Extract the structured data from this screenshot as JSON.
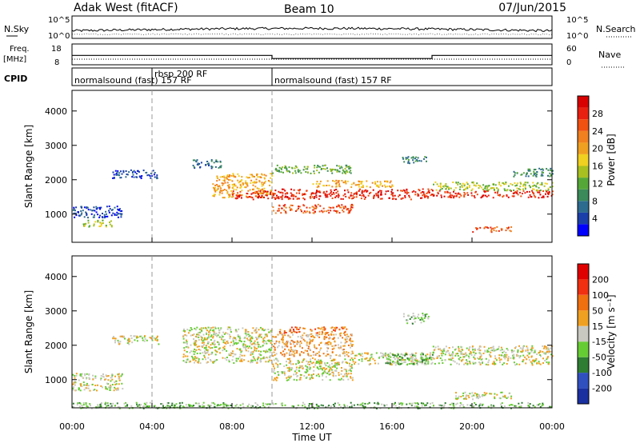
{
  "chart_data": {
    "type": "heatmap",
    "header": {
      "site": "Adak West (fitACF)",
      "beam": "Beam 10",
      "date": "07/Jun/2015"
    },
    "top_panels": {
      "nsky": {
        "label": "N.Sky",
        "ticks": [
          "10^5",
          "10^0"
        ],
        "right_label": "N.Search",
        "right_ticks": [
          "10^5",
          "10^0"
        ]
      },
      "freq": {
        "label_line1": "Freq.",
        "label_line2": "[MHz]",
        "ticks": [
          "18",
          "8"
        ],
        "right_label": "Nave",
        "right_ticks": [
          "60",
          "0"
        ],
        "segments": [
          {
            "start": 0,
            "end": 10,
            "freq_mhz": 12.5
          },
          {
            "start": 10,
            "end": 18,
            "freq_mhz": 11.0
          },
          {
            "start": 18,
            "end": 24,
            "freq_mhz": 12.5
          }
        ]
      },
      "cpid": {
        "label": "CPID",
        "segments": [
          {
            "start": 0,
            "end": 4,
            "text": "normalsound (fast) 157 RF"
          },
          {
            "start": 4,
            "end": 10,
            "text": "rbsp 200 RF"
          },
          {
            "start": 10,
            "end": 24,
            "text": "normalsound (fast) 157 RF"
          }
        ]
      }
    },
    "x": {
      "label": "Time UT",
      "range_hours": [
        0,
        24
      ],
      "tick_labels": [
        "00:00",
        "04:00",
        "08:00",
        "12:00",
        "16:00",
        "20:00",
        "00:00"
      ],
      "tick_values_hours": [
        0,
        4,
        8,
        12,
        16,
        20,
        24
      ],
      "dashed_markers_hours": [
        4,
        10
      ]
    },
    "y": {
      "label": "Slant Range [km]",
      "range_km": [
        180,
        4600
      ],
      "ticks_km": [
        1000,
        2000,
        3000,
        4000
      ],
      "tick_labels": [
        "1000",
        "2000",
        "3000",
        "4000"
      ]
    },
    "power": {
      "colorbar_label": "Power [dB]",
      "tick_labels": [
        "28",
        "24",
        "20",
        "16",
        "12",
        "8",
        "4"
      ],
      "colors": [
        "#0000ff",
        "#1a3fa8",
        "#2d6b8f",
        "#3a8a5a",
        "#55a838",
        "#a8c020",
        "#f0d020",
        "#f0a020",
        "#f08020",
        "#f05010",
        "#e82010",
        "#d80000"
      ]
    },
    "velocity": {
      "colorbar_label": "Velocity [m s⁻¹]",
      "tick_labels": [
        "200",
        "100",
        "50",
        "15",
        "-15",
        "-50",
        "-100",
        "-200"
      ],
      "colors": [
        "#1a30a0",
        "#3050c0",
        "#2e7d32",
        "#66cc33",
        "#c8c8c0",
        "#f0a020",
        "#f07010",
        "#f03010",
        "#e00000"
      ]
    },
    "power_echo_bands": [
      {
        "t0": 0.0,
        "t1": 2.5,
        "r0": 900,
        "r1": 1250,
        "level": 1
      },
      {
        "t0": 0.5,
        "t1": 2.0,
        "r0": 650,
        "r1": 850,
        "level": 5
      },
      {
        "t0": 2.0,
        "t1": 4.3,
        "r0": 2050,
        "r1": 2300,
        "level": 1
      },
      {
        "t0": 6.0,
        "t1": 7.5,
        "r0": 2350,
        "r1": 2600,
        "level": 2
      },
      {
        "t0": 7.0,
        "t1": 10.0,
        "r0": 1500,
        "r1": 2200,
        "level": 7
      },
      {
        "t0": 8.0,
        "t1": 10.0,
        "r0": 1450,
        "r1": 1700,
        "level": 10
      },
      {
        "t0": 10.0,
        "t1": 14.0,
        "r0": 1050,
        "r1": 1300,
        "level": 9
      },
      {
        "t0": 10.0,
        "t1": 18.0,
        "r0": 1450,
        "r1": 1750,
        "level": 10
      },
      {
        "t0": 12.0,
        "t1": 16.0,
        "r0": 1800,
        "r1": 2000,
        "level": 7
      },
      {
        "t0": 10.0,
        "t1": 14.0,
        "r0": 2200,
        "r1": 2450,
        "level": 4
      },
      {
        "t0": 16.5,
        "t1": 17.8,
        "r0": 2500,
        "r1": 2700,
        "level": 3
      },
      {
        "t0": 18.0,
        "t1": 24.0,
        "r0": 1500,
        "r1": 1700,
        "level": 10
      },
      {
        "t0": 18.0,
        "t1": 24.0,
        "r0": 1700,
        "r1": 1950,
        "level": 5
      },
      {
        "t0": 20.0,
        "t1": 22.0,
        "r0": 500,
        "r1": 650,
        "level": 9
      },
      {
        "t0": 22.0,
        "t1": 24.0,
        "r0": 2100,
        "r1": 2350,
        "level": 3
      }
    ],
    "velocity_echo_bands": [
      {
        "t0": 0.0,
        "t1": 2.5,
        "r0": 700,
        "r1": 1200,
        "level": 4
      },
      {
        "t0": 2.0,
        "t1": 4.3,
        "r0": 2050,
        "r1": 2300,
        "level": 4
      },
      {
        "t0": 5.5,
        "t1": 10.0,
        "r0": 1500,
        "r1": 2550,
        "level": 4
      },
      {
        "t0": 10.0,
        "t1": 14.0,
        "r0": 1000,
        "r1": 1650,
        "level": 4
      },
      {
        "t0": 10.0,
        "t1": 14.0,
        "r0": 1700,
        "r1": 2350,
        "level": 5
      },
      {
        "t0": 10.3,
        "t1": 13.7,
        "r0": 2350,
        "r1": 2550,
        "level": 6
      },
      {
        "t0": 14.0,
        "t1": 18.0,
        "r0": 1450,
        "r1": 1800,
        "level": 4
      },
      {
        "t0": 15.5,
        "t1": 18.0,
        "r0": 1450,
        "r1": 1800,
        "level": 3
      },
      {
        "t0": 16.5,
        "t1": 17.8,
        "r0": 2650,
        "r1": 2950,
        "level": 3
      },
      {
        "t0": 18.0,
        "t1": 24.0,
        "r0": 1450,
        "r1": 2000,
        "level": 4
      },
      {
        "t0": 19.0,
        "t1": 22.0,
        "r0": 450,
        "r1": 650,
        "level": 4
      },
      {
        "t0": 0.0,
        "t1": 24.0,
        "r0": 180,
        "r1": 350,
        "level": 3
      }
    ]
  }
}
